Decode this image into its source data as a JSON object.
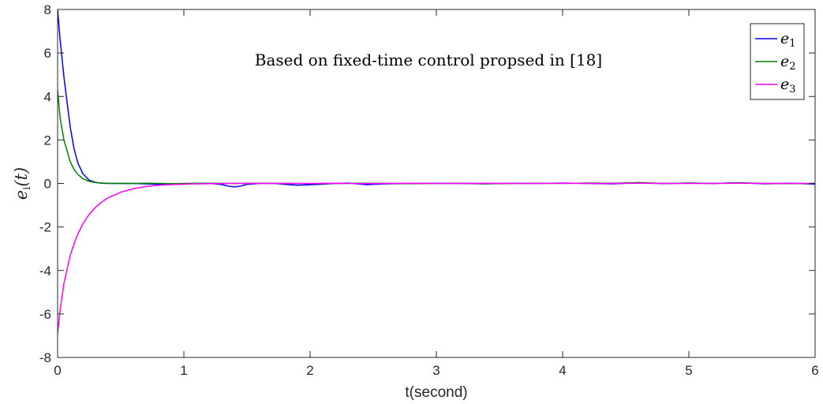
{
  "chart_data": {
    "type": "line",
    "title": "",
    "annotation": "Based on fixed-time control propsed in [18]",
    "xlabel": "t(second)",
    "ylabel": "e",
    "ylabel_sub": "i",
    "ylabel_suffix": "(t)",
    "xlim": [
      0,
      6
    ],
    "ylim": [
      -8,
      8
    ],
    "xticks": [
      0,
      1,
      2,
      3,
      4,
      5,
      6
    ],
    "yticks": [
      -8,
      -6,
      -4,
      -2,
      0,
      2,
      4,
      6,
      8
    ],
    "grid": false,
    "legend_position": "top-right",
    "series": [
      {
        "name": "e",
        "sub": "1",
        "color": "#0000ff",
        "x": [
          0,
          0.02,
          0.05,
          0.08,
          0.1,
          0.13,
          0.16,
          0.2,
          0.25,
          0.3,
          0.35,
          0.4,
          0.5,
          0.6,
          0.7,
          0.8,
          0.9,
          1.0,
          1.1,
          1.2,
          1.3,
          1.35,
          1.4,
          1.45,
          1.5,
          1.6,
          1.7,
          1.8,
          1.9,
          2.0,
          2.1,
          2.2,
          2.3,
          2.4,
          2.45,
          2.5,
          2.6,
          2.8,
          3.0,
          3.2,
          3.4,
          3.6,
          3.8,
          4.0,
          4.2,
          4.4,
          4.6,
          4.8,
          5.0,
          5.2,
          5.4,
          5.6,
          5.8,
          6.0
        ],
        "y": [
          8.0,
          6.6,
          4.9,
          3.5,
          2.6,
          1.6,
          0.95,
          0.45,
          0.15,
          0.05,
          0.01,
          0.0,
          0.0,
          0.0,
          -0.02,
          -0.04,
          -0.05,
          -0.03,
          0.0,
          0.01,
          -0.05,
          -0.12,
          -0.16,
          -0.12,
          -0.04,
          0.0,
          0.01,
          -0.04,
          -0.08,
          -0.06,
          -0.03,
          0.0,
          0.02,
          -0.03,
          -0.06,
          -0.04,
          -0.02,
          0.0,
          0.01,
          0.0,
          -0.02,
          0.01,
          0.0,
          0.02,
          0.0,
          -0.02,
          0.03,
          -0.01,
          0.02,
          0.0,
          0.03,
          -0.02,
          0.01,
          -0.03
        ]
      },
      {
        "name": "e",
        "sub": "2",
        "color": "#008000",
        "x": [
          0,
          0.02,
          0.05,
          0.08,
          0.1,
          0.13,
          0.16,
          0.2,
          0.25,
          0.3,
          0.35,
          0.4,
          0.5,
          0.6,
          0.7,
          0.8,
          0.9,
          1.0,
          1.2,
          1.4,
          1.6,
          1.8,
          2.0,
          2.2,
          2.4,
          2.6,
          2.8,
          3.0,
          3.2,
          3.4,
          3.6,
          3.8,
          4.0,
          4.2,
          4.4,
          4.6,
          4.8,
          5.0,
          5.2,
          5.4,
          5.6,
          5.8,
          6.0
        ],
        "y": [
          4.3,
          3.0,
          2.0,
          1.4,
          1.0,
          0.65,
          0.42,
          0.22,
          0.1,
          0.04,
          0.02,
          0.01,
          0.0,
          0.0,
          0.01,
          0.0,
          -0.01,
          0.0,
          0.01,
          0.0,
          0.01,
          0.0,
          -0.01,
          0.0,
          0.01,
          0.0,
          -0.01,
          0.0,
          0.01,
          -0.01,
          0.0,
          0.01,
          0.0,
          0.02,
          0.01,
          0.04,
          0.0,
          0.02,
          0.0,
          0.03,
          0.0,
          -0.01,
          0.0
        ]
      },
      {
        "name": "e",
        "sub": "3",
        "color": "#ff00ff",
        "x": [
          0,
          0.02,
          0.05,
          0.08,
          0.1,
          0.15,
          0.2,
          0.25,
          0.3,
          0.35,
          0.4,
          0.5,
          0.6,
          0.7,
          0.8,
          0.9,
          1.0,
          1.1,
          1.2,
          1.4,
          1.6,
          1.8,
          2.0,
          2.2,
          2.4,
          2.6,
          2.8,
          3.0,
          3.2,
          3.4,
          3.6,
          3.8,
          4.0,
          4.2,
          4.4,
          4.6,
          4.8,
          5.0,
          5.2,
          5.4,
          5.6,
          5.8,
          6.0
        ],
        "y": [
          -6.9,
          -5.8,
          -4.6,
          -3.8,
          -3.3,
          -2.45,
          -1.85,
          -1.42,
          -1.1,
          -0.85,
          -0.66,
          -0.4,
          -0.24,
          -0.14,
          -0.08,
          -0.05,
          -0.03,
          -0.02,
          -0.01,
          0.0,
          0.0,
          0.0,
          0.0,
          0.01,
          -0.01,
          0.0,
          0.01,
          0.0,
          0.0,
          0.01,
          0.0,
          0.0,
          0.01,
          0.0,
          0.0,
          0.01,
          0.0,
          0.0,
          0.0,
          0.01,
          0.0,
          0.0,
          0.0
        ]
      }
    ]
  }
}
